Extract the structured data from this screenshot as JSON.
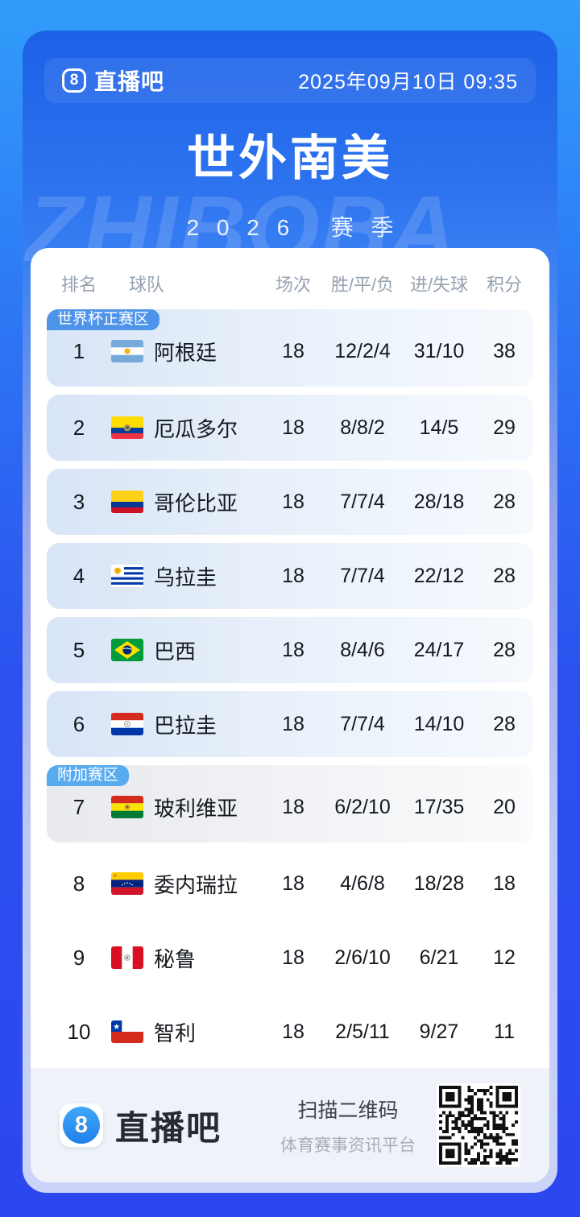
{
  "header": {
    "brand": "直播吧",
    "logo_glyph": "8",
    "datetime": "2025年09月10日 09:35"
  },
  "hero": {
    "title": "世外南美",
    "season": "2026 赛季",
    "watermark": "ZHIBOBA"
  },
  "table": {
    "columns": [
      "排名",
      "球队",
      "场次",
      "胜/平/负",
      "进/失球",
      "积分"
    ]
  },
  "zones": [
    {
      "label": "世界杯正赛区",
      "color": "#4E95E9"
    },
    {
      "label": "附加赛区",
      "color": "#58ABEF"
    }
  ],
  "standings": {
    "rows": [
      {
        "rank": "1",
        "team": "阿根廷",
        "flag": "flag-argentina-icon",
        "played": "18",
        "wdl": "12/2/4",
        "goals": "31/10",
        "points": "38"
      },
      {
        "rank": "2",
        "team": "厄瓜多尔",
        "flag": "flag-ecuador-icon",
        "played": "18",
        "wdl": "8/8/2",
        "goals": "14/5",
        "points": "29"
      },
      {
        "rank": "3",
        "team": "哥伦比亚",
        "flag": "flag-colombia-icon",
        "played": "18",
        "wdl": "7/7/4",
        "goals": "28/18",
        "points": "28"
      },
      {
        "rank": "4",
        "team": "乌拉圭",
        "flag": "flag-uruguay-icon",
        "played": "18",
        "wdl": "7/7/4",
        "goals": "22/12",
        "points": "28"
      },
      {
        "rank": "5",
        "team": "巴西",
        "flag": "flag-brazil-icon",
        "played": "18",
        "wdl": "8/4/6",
        "goals": "24/17",
        "points": "28"
      },
      {
        "rank": "6",
        "team": "巴拉圭",
        "flag": "flag-paraguay-icon",
        "played": "18",
        "wdl": "7/7/4",
        "goals": "14/10",
        "points": "28"
      },
      {
        "rank": "7",
        "team": "玻利维亚",
        "flag": "flag-bolivia-icon",
        "played": "18",
        "wdl": "6/2/10",
        "goals": "17/35",
        "points": "20"
      },
      {
        "rank": "8",
        "team": "委内瑞拉",
        "flag": "flag-venezuela-icon",
        "played": "18",
        "wdl": "4/6/8",
        "goals": "18/28",
        "points": "18"
      },
      {
        "rank": "9",
        "team": "秘鲁",
        "flag": "flag-peru-icon",
        "played": "18",
        "wdl": "2/6/10",
        "goals": "6/21",
        "points": "12"
      },
      {
        "rank": "10",
        "team": "智利",
        "flag": "flag-chile-icon",
        "played": "18",
        "wdl": "2/5/11",
        "goals": "9/27",
        "points": "11"
      }
    ]
  },
  "footer": {
    "brand": "直播吧",
    "logo_glyph": "8",
    "scan_text": "扫描二维码",
    "tagline": "体育赛事资讯平台"
  },
  "colors": {
    "background_top": "#319DFA",
    "background_bottom": "#2B47EF",
    "poster_top": "#1C61E7",
    "poster_bottom": "#CBD3F8",
    "qualify_badge": "#4E95E9",
    "playoff_badge": "#58ABEF"
  }
}
